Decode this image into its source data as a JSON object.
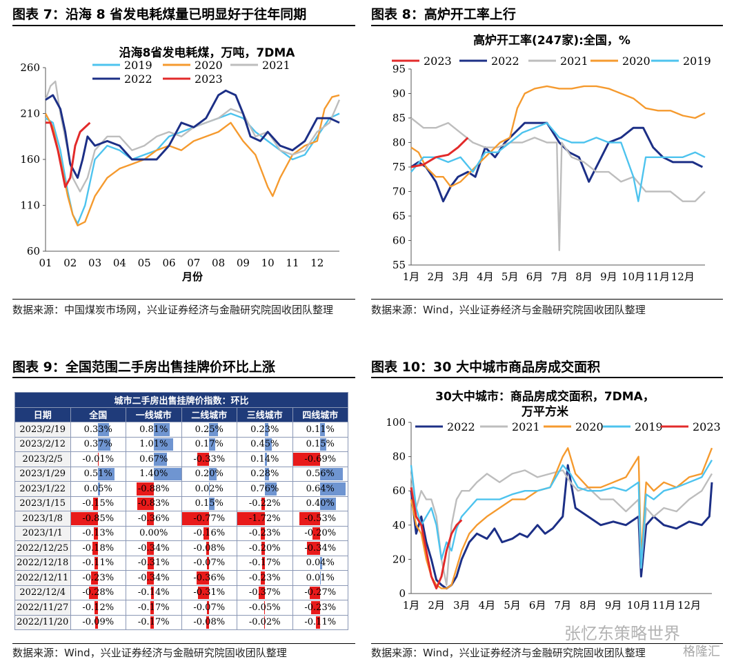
{
  "figure7": {
    "heading": "图表 7：沿海 8 省发电耗煤量已明显好于往年同期",
    "source": "数据来源：中国煤炭市场网，兴业证券经济与金融研究院固收团队整理"
  },
  "figure8": {
    "heading": "图表 8：高炉开工率上行",
    "source": "数据来源：Wind，兴业证券经济与金融研究院固收团队整理"
  },
  "figure9": {
    "heading": "图表 9：全国范围二手房出售挂牌价环比上涨",
    "source": "数据来源：Wind，兴业证券经济与金融研究院固收团队整理"
  },
  "figure10": {
    "heading": "图表 10：30 大中城市商品房成交面积",
    "source": "数据来源：Wind，兴业证券经济与金融研究院固收团队整理"
  },
  "watermark": {
    "text": "张忆东策略世界",
    "sub": "格隆汇"
  },
  "colors": {
    "y2019": "#4dc3ee",
    "y2020": "#f59a2e",
    "y2021": "#bdbdbd",
    "y2022": "#1c2f86",
    "y2023": "#e22a2a"
  },
  "chart_data": [
    {
      "id": "coal",
      "type": "line",
      "title": "沿海8省发电耗煤，万吨，7DMA",
      "xlabel": "月份",
      "ylabel": "",
      "ylim": [
        60,
        260
      ],
      "yticks": [
        60,
        110,
        160,
        210,
        260
      ],
      "xticks": [
        "01",
        "02",
        "03",
        "04",
        "05",
        "06",
        "07",
        "08",
        "09",
        "10",
        "11",
        "12"
      ],
      "legend_placement": "top",
      "series": [
        {
          "name": "2019",
          "color": "#4dc3ee",
          "x": [
            1,
            1.3,
            1.6,
            1.9,
            2.1,
            2.3,
            2.6,
            3,
            3.5,
            4,
            4.5,
            5,
            5.5,
            6,
            6.5,
            7,
            7.5,
            8,
            8.5,
            9,
            9.5,
            10,
            10.5,
            11,
            11.5,
            12,
            12.5,
            12.9
          ],
          "values": [
            205,
            200,
            170,
            125,
            100,
            90,
            110,
            160,
            175,
            170,
            160,
            165,
            170,
            185,
            190,
            195,
            200,
            205,
            210,
            205,
            190,
            180,
            170,
            160,
            165,
            185,
            205,
            210
          ]
        },
        {
          "name": "2020",
          "color": "#f59a2e",
          "x": [
            1,
            1.3,
            1.6,
            1.9,
            2.1,
            2.3,
            2.6,
            3,
            3.5,
            4,
            4.5,
            5,
            5.5,
            6,
            6.5,
            7,
            7.5,
            8,
            8.5,
            9,
            9.5,
            10,
            10.2,
            10.5,
            11,
            11.5,
            12,
            12.3,
            12.6,
            12.9
          ],
          "values": [
            210,
            195,
            160,
            120,
            100,
            88,
            92,
            120,
            140,
            150,
            155,
            160,
            170,
            175,
            170,
            180,
            185,
            190,
            200,
            180,
            165,
            130,
            120,
            140,
            165,
            175,
            180,
            215,
            228,
            230
          ]
        },
        {
          "name": "2021",
          "color": "#bdbdbd",
          "x": [
            1,
            1.2,
            1.4,
            1.6,
            1.9,
            2.1,
            2.4,
            2.7,
            3,
            3.5,
            4,
            4.5,
            5,
            5.5,
            6,
            6.5,
            7,
            7.5,
            8,
            8.5,
            9,
            9.5,
            10,
            10.5,
            11,
            11.5,
            12,
            12.5,
            12.9
          ],
          "values": [
            225,
            240,
            245,
            210,
            170,
            140,
            125,
            140,
            170,
            185,
            185,
            170,
            175,
            185,
            190,
            185,
            195,
            200,
            205,
            215,
            210,
            185,
            190,
            170,
            165,
            170,
            190,
            200,
            225
          ]
        },
        {
          "name": "2022",
          "color": "#1c2f86",
          "x": [
            1,
            1.3,
            1.6,
            1.8,
            2,
            2.3,
            2.5,
            2.7,
            3,
            3.5,
            4,
            4.5,
            5,
            5.5,
            6,
            6.5,
            7,
            7.5,
            8,
            8.3,
            8.7,
            9,
            9.3,
            9.7,
            10,
            10.5,
            11,
            11.5,
            12,
            12.5,
            12.9
          ],
          "values": [
            225,
            230,
            215,
            190,
            155,
            140,
            160,
            185,
            175,
            180,
            175,
            160,
            160,
            160,
            175,
            200,
            195,
            205,
            230,
            235,
            230,
            210,
            185,
            180,
            190,
            175,
            170,
            180,
            205,
            205,
            200
          ]
        },
        {
          "name": "2023",
          "color": "#e22a2a",
          "x": [
            1,
            1.2,
            1.5,
            1.8,
            2,
            2.2,
            2.4,
            2.6,
            2.8
          ],
          "values": [
            200,
            200,
            170,
            130,
            140,
            175,
            190,
            195,
            200
          ]
        }
      ]
    },
    {
      "id": "furnace",
      "type": "line",
      "title": "高炉开工率(247家):全国，%",
      "xlabel": "",
      "ylabel": "",
      "ylim": [
        55,
        95
      ],
      "yticks": [
        55,
        60,
        65,
        70,
        75,
        80,
        85,
        90,
        95
      ],
      "xticks": [
        "1月",
        "2月",
        "3月",
        "4月",
        "5月",
        "6月",
        "7月",
        "8月",
        "9月",
        "10月",
        "11月",
        "12月"
      ],
      "legend_placement": "top",
      "series": [
        {
          "name": "2023",
          "color": "#e22a2a",
          "x": [
            1,
            1.5,
            2,
            2.5,
            2.9,
            3.3
          ],
          "values": [
            75,
            75.5,
            77,
            77.5,
            79,
            81
          ]
        },
        {
          "name": "2022",
          "color": "#1c2f86",
          "x": [
            1,
            1.3,
            1.6,
            2,
            2.3,
            2.6,
            2.9,
            3.3,
            3.6,
            4,
            4.4,
            4.8,
            5.2,
            5.6,
            6,
            6.5,
            7,
            7.4,
            7.8,
            8.2,
            8.6,
            9,
            9.5,
            10,
            10.4,
            10.8,
            11.2,
            11.6,
            12,
            12.4,
            12.8
          ],
          "values": [
            75,
            76,
            75,
            72,
            68,
            71,
            73,
            74,
            73,
            79,
            77,
            80,
            82,
            84,
            84,
            84,
            80,
            78,
            77,
            72,
            76,
            80,
            81,
            83,
            83,
            79,
            77,
            76,
            76,
            76,
            75
          ]
        },
        {
          "name": "2021",
          "color": "#bdbdbd",
          "x": [
            1,
            1.5,
            2,
            2.5,
            3,
            3.5,
            4,
            4.5,
            5,
            5.5,
            6,
            6.5,
            6.9,
            7,
            7.1,
            7.5,
            8,
            8.5,
            9,
            9.5,
            10,
            10.5,
            11,
            11.5,
            12,
            12.5,
            12.9
          ],
          "values": [
            85,
            83,
            83,
            84,
            82,
            80,
            79,
            79,
            80,
            80,
            81,
            80,
            80,
            58,
            80,
            77,
            76,
            74,
            74,
            72,
            73,
            70,
            70,
            70,
            68,
            68,
            70
          ]
        },
        {
          "name": "2020",
          "color": "#f59a2e",
          "x": [
            1,
            1.3,
            1.6,
            2,
            2.3,
            2.6,
            3,
            3.4,
            3.8,
            4.2,
            4.6,
            5,
            5.3,
            5.6,
            6,
            6.5,
            7,
            7.5,
            8,
            8.5,
            9,
            9.5,
            10,
            10.5,
            11,
            11.5,
            12,
            12.5,
            12.9
          ],
          "values": [
            79,
            78,
            75,
            73,
            73,
            71,
            72,
            74,
            76,
            78,
            80,
            81,
            87,
            90,
            91,
            91.5,
            91,
            91,
            91.5,
            91.5,
            91,
            90,
            89,
            87,
            86.5,
            86.5,
            85.5,
            85,
            86
          ]
        },
        {
          "name": "2019",
          "color": "#4dc3ee",
          "x": [
            1,
            1.5,
            2,
            2.5,
            3,
            3.5,
            4,
            4.5,
            5,
            5.5,
            6,
            6.5,
            7,
            7.5,
            8,
            8.5,
            9,
            9.5,
            10,
            10.2,
            10.5,
            11,
            11.5,
            12,
            12.5,
            12.9
          ],
          "values": [
            74,
            77,
            77,
            76,
            77,
            74,
            78,
            78,
            80,
            82,
            83,
            84,
            81,
            80,
            80,
            81,
            80,
            80,
            73,
            68,
            77,
            77,
            77,
            77,
            78,
            77
          ]
        }
      ]
    },
    {
      "id": "listing",
      "type": "table",
      "title": "城市二手房出售挂牌价指数：环比",
      "columns": [
        "日期",
        "全国",
        "一线城市",
        "二线城市",
        "三线城市",
        "四线城市"
      ],
      "rows": [
        [
          "2023/2/19",
          "0.33%",
          "0.81%",
          "0.25%",
          "0.23%",
          "0.11%"
        ],
        [
          "2023/2/12",
          "0.37%",
          "1.01%",
          "0.17%",
          "0.45%",
          "0.15%"
        ],
        [
          "2023/2/5",
          "-0.01%",
          "0.67%",
          "-0.33%",
          "0.14%",
          "-0.69%"
        ],
        [
          "2023/1/29",
          "0.51%",
          "1.40%",
          "0.20%",
          "0.28%",
          "0.56%"
        ],
        [
          "2023/1/22",
          "0.05%",
          "-0.88%",
          "0.02%",
          "0.76%",
          "0.64%"
        ],
        [
          "2023/1/15",
          "-0.15%",
          "-0.83%",
          "0.15%",
          "-0.22%",
          "0.40%"
        ],
        [
          "2023/1/8",
          "-0.85%",
          "-0.36%",
          "-0.77%",
          "-1.72%",
          "-0.53%"
        ],
        [
          "2023/1/1",
          "-0.13%",
          "0.00%",
          "-0.16%",
          "-0.23%",
          "-0.20%"
        ],
        [
          "2022/12/25",
          "-0.18%",
          "-0.34%",
          "-0.08%",
          "-0.20%",
          "-0.34%"
        ],
        [
          "2022/12/18",
          "-0.11%",
          "-0.31%",
          "-0.07%",
          "-0.17%",
          "0.04%"
        ],
        [
          "2022/12/11",
          "-0.23%",
          "-0.34%",
          "-0.36%",
          "-0.23%",
          "0.01%"
        ],
        [
          "2022/12/4",
          "-0.28%",
          "-0.14%",
          "-0.31%",
          "-0.37%",
          "-0.27%"
        ],
        [
          "2022/11/27",
          "-0.12%",
          "-0.17%",
          "-0.07%",
          "-0.05%",
          "-0.23%"
        ],
        [
          "2022/11/20",
          "-0.09%",
          "-0.17%",
          "-0.08%",
          "-0.02%",
          "-0.11%"
        ]
      ]
    },
    {
      "id": "sales",
      "type": "line",
      "title": "30大中城市：商品房成交面积，7DMA，万平方米",
      "xlabel": "",
      "ylabel": "",
      "ylim": [
        0,
        100
      ],
      "yticks": [
        0,
        20,
        40,
        60,
        80,
        100
      ],
      "xticks": [
        "1月",
        "2月",
        "3月",
        "4月",
        "5月",
        "6月",
        "7月",
        "8月",
        "9月",
        "10月",
        "11月",
        "12月"
      ],
      "legend_placement": "top",
      "series": [
        {
          "name": "2022",
          "color": "#1c2f86",
          "x": [
            1,
            1.2,
            1.4,
            1.6,
            1.8,
            2,
            2.2,
            2.4,
            2.6,
            2.8,
            3,
            3.3,
            3.6,
            4,
            4.3,
            4.6,
            5,
            5.3,
            5.6,
            6,
            6.3,
            6.6,
            7,
            7.2,
            7.5,
            8,
            8.5,
            9,
            9.5,
            10,
            10.1,
            10.3,
            10.6,
            11,
            11.5,
            12,
            12.5,
            12.8,
            12.9
          ],
          "values": [
            60,
            35,
            45,
            30,
            20,
            8,
            5,
            3,
            5,
            10,
            20,
            30,
            35,
            32,
            38,
            30,
            32,
            35,
            33,
            40,
            35,
            38,
            45,
            75,
            50,
            45,
            40,
            42,
            40,
            45,
            10,
            40,
            45,
            40,
            38,
            42,
            40,
            45,
            65
          ]
        },
        {
          "name": "2021",
          "color": "#bdbdbd",
          "x": [
            1,
            1.2,
            1.4,
            1.6,
            1.8,
            2,
            2.2,
            2.4,
            2.6,
            2.8,
            3,
            3.3,
            3.6,
            4,
            4.5,
            5,
            5.5,
            6,
            6.5,
            7,
            7.3,
            7.6,
            8,
            8.5,
            9,
            9.5,
            10,
            10.1,
            10.3,
            10.6,
            11,
            11.5,
            12,
            12.5,
            12.9
          ],
          "values": [
            70,
            50,
            60,
            55,
            55,
            45,
            20,
            5,
            40,
            55,
            60,
            60,
            65,
            70,
            65,
            70,
            72,
            68,
            70,
            72,
            65,
            60,
            62,
            55,
            55,
            48,
            55,
            15,
            50,
            45,
            50,
            48,
            55,
            60,
            70
          ]
        },
        {
          "name": "2020",
          "color": "#f59a2e",
          "x": [
            1,
            1.2,
            1.4,
            1.6,
            1.8,
            2,
            2.2,
            2.4,
            2.6,
            2.8,
            3,
            3.3,
            3.6,
            4,
            4.5,
            5,
            5.5,
            6,
            6.5,
            7,
            7.2,
            7.5,
            8,
            8.5,
            9,
            9.5,
            10,
            10.1,
            10.3,
            10.6,
            11,
            11.5,
            12,
            12.5,
            12.9
          ],
          "values": [
            55,
            40,
            35,
            20,
            10,
            5,
            3,
            3,
            5,
            15,
            25,
            35,
            40,
            45,
            50,
            55,
            55,
            60,
            62,
            80,
            85,
            70,
            62,
            62,
            65,
            68,
            80,
            20,
            65,
            60,
            65,
            62,
            68,
            70,
            85
          ]
        },
        {
          "name": "2019",
          "color": "#4dc3ee",
          "x": [
            1,
            1.2,
            1.4,
            1.6,
            1.8,
            2,
            2.2,
            2.4,
            2.6,
            2.8,
            3,
            3.3,
            3.6,
            4,
            4.5,
            5,
            5.5,
            6,
            6.5,
            7,
            7.3,
            7.6,
            8,
            8.5,
            9,
            9.5,
            10,
            10.1,
            10.3,
            10.6,
            11,
            11.5,
            12,
            12.5,
            12.9
          ],
          "values": [
            75,
            50,
            40,
            45,
            50,
            40,
            20,
            30,
            25,
            38,
            45,
            50,
            55,
            55,
            55,
            58,
            60,
            60,
            62,
            75,
            70,
            62,
            60,
            60,
            62,
            60,
            65,
            15,
            58,
            55,
            60,
            62,
            65,
            68,
            78
          ]
        },
        {
          "name": "2023",
          "color": "#e22a2a",
          "x": [
            1,
            1.2,
            1.4,
            1.6,
            1.8,
            2,
            2.2,
            2.4,
            2.6,
            2.8,
            3
          ],
          "values": [
            62,
            45,
            40,
            25,
            10,
            3,
            10,
            25,
            35,
            40,
            43
          ]
        }
      ]
    }
  ]
}
